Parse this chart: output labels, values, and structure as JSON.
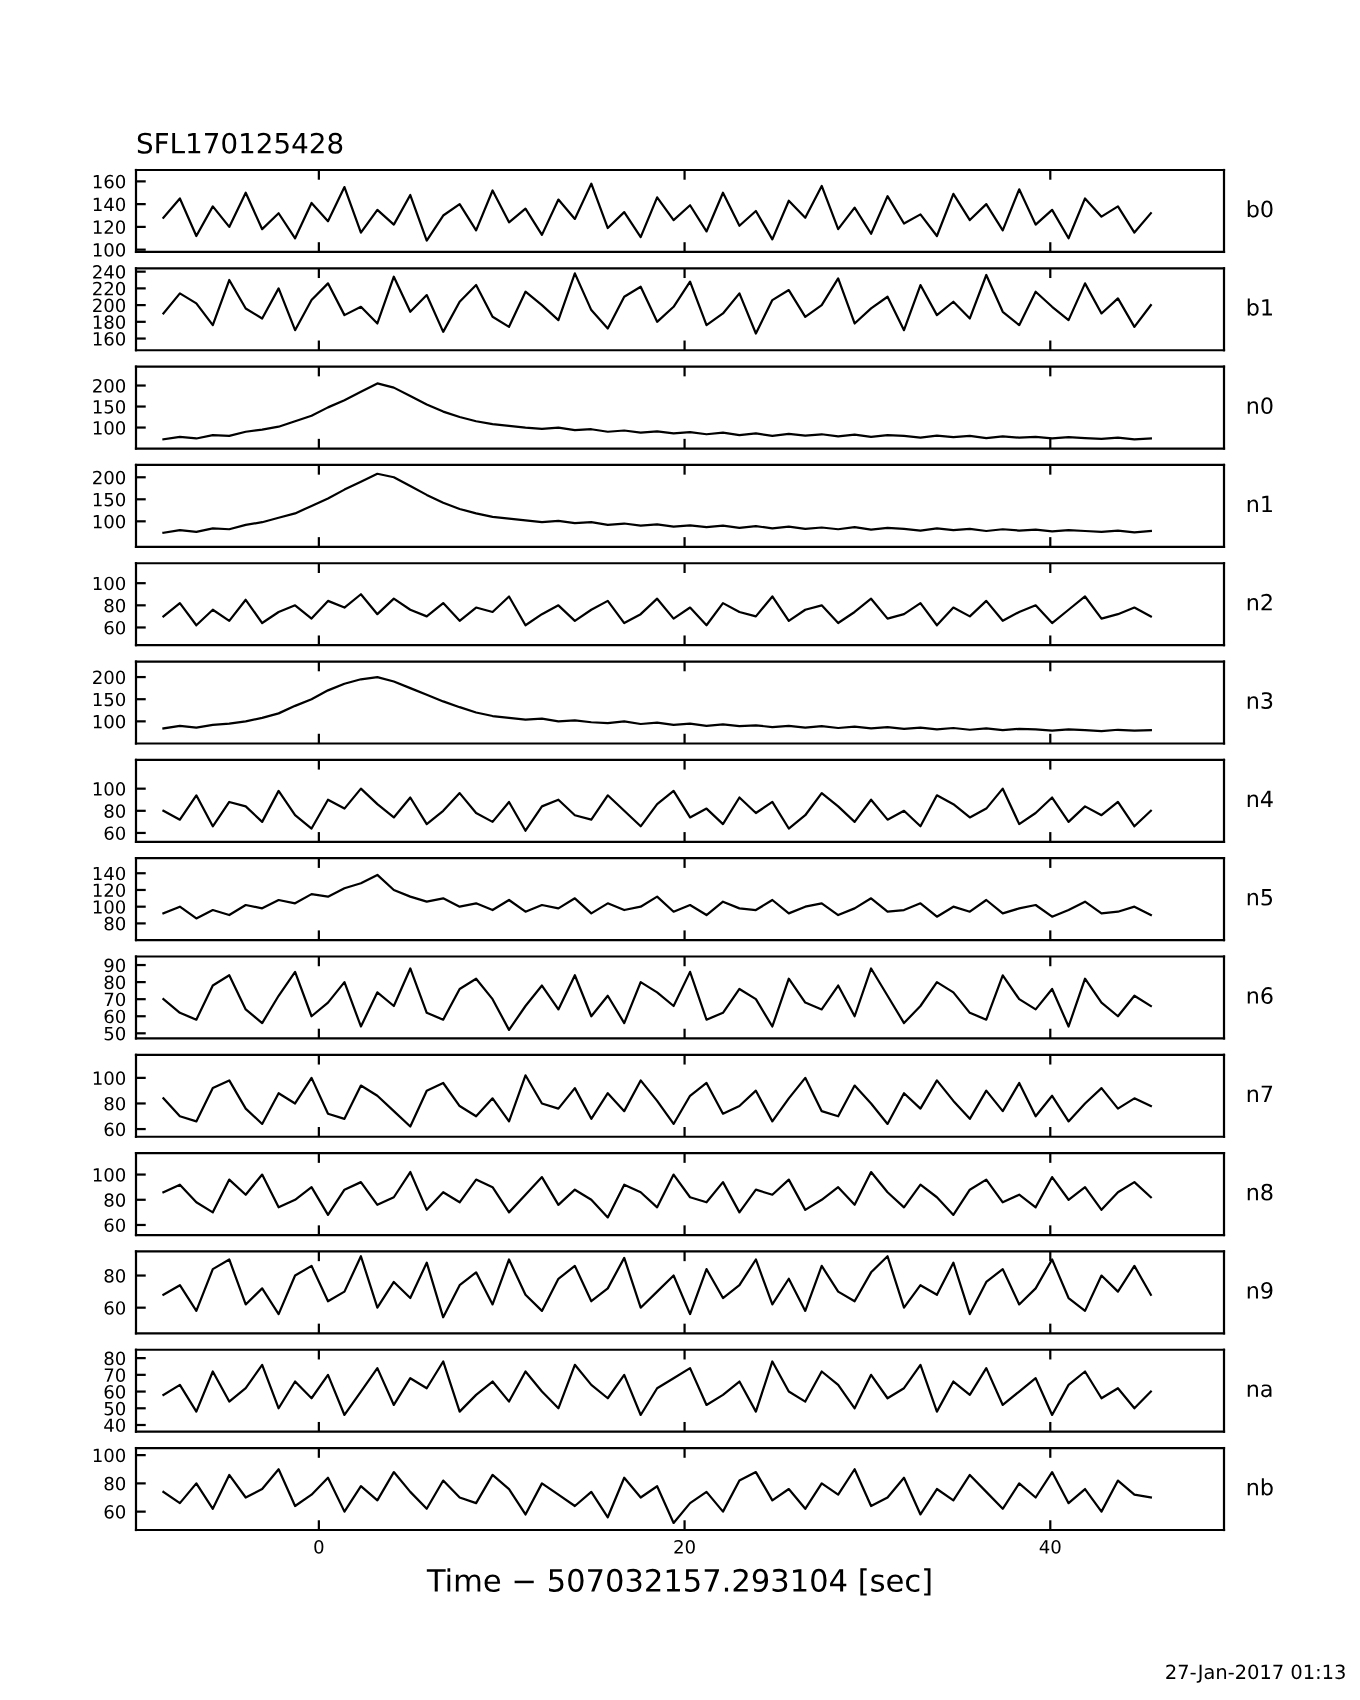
{
  "chart_data": [
    {
      "type": "line",
      "title": "SFL170125428",
      "annotations": [
        "b0"
      ],
      "tick_labels": "y",
      "xlim": [
        -10,
        49.5
      ],
      "xticks": [
        0,
        20,
        40
      ],
      "ylim": [
        98,
        170
      ],
      "yticks": [
        100,
        120,
        140,
        160
      ],
      "x": [
        -8.5,
        -7.6,
        -6.7,
        -5.8,
        -4.9,
        -4,
        -3.1,
        -2.2,
        -1.3,
        -0.4,
        0.5,
        1.4,
        2.3,
        3.2,
        4.1,
        5,
        5.9,
        6.8,
        7.7,
        8.6,
        9.5,
        10.4,
        11.3,
        12.2,
        13.1,
        14,
        14.9,
        15.8,
        16.7,
        17.6,
        18.5,
        19.4,
        20.3,
        21.2,
        22.1,
        23,
        23.9,
        24.8,
        25.7,
        26.6,
        27.5,
        28.4,
        29.3,
        30.2,
        31.1,
        32,
        32.9,
        33.8,
        34.7,
        35.6,
        36.5,
        37.4,
        38.3,
        39.2,
        40.1,
        41,
        41.9,
        42.8,
        43.7,
        44.6,
        45.5
      ],
      "series": [
        {
          "color": "#000000",
          "values": [
            128,
            145,
            112,
            138,
            120,
            150,
            118,
            132,
            110,
            141,
            125,
            155,
            115,
            135,
            122,
            148,
            108,
            130,
            140,
            117,
            152,
            124,
            136,
            113,
            144,
            127,
            158,
            119,
            133,
            111,
            146,
            126,
            139,
            116,
            150,
            121,
            134,
            109,
            143,
            128,
            156,
            118,
            137,
            114,
            147,
            123,
            131,
            112,
            149,
            126,
            140,
            117,
            153,
            122,
            135,
            110,
            145,
            129,
            138,
            115,
            132
          ]
        }
      ]
    },
    {
      "type": "line",
      "annotations": [
        "b1"
      ],
      "tick_labels": "y",
      "xlim": [
        -10,
        49.5
      ],
      "xticks": [
        0,
        20,
        40
      ],
      "ylim": [
        146,
        244
      ],
      "yticks": [
        160,
        180,
        200,
        220,
        240
      ],
      "x": [
        -8.5,
        -7.6,
        -6.7,
        -5.8,
        -4.9,
        -4,
        -3.1,
        -2.2,
        -1.3,
        -0.4,
        0.5,
        1.4,
        2.3,
        3.2,
        4.1,
        5,
        5.9,
        6.8,
        7.7,
        8.6,
        9.5,
        10.4,
        11.3,
        12.2,
        13.1,
        14,
        14.9,
        15.8,
        16.7,
        17.6,
        18.5,
        19.4,
        20.3,
        21.2,
        22.1,
        23,
        23.9,
        24.8,
        25.7,
        26.6,
        27.5,
        28.4,
        29.3,
        30.2,
        31.1,
        32,
        32.9,
        33.8,
        34.7,
        35.6,
        36.5,
        37.4,
        38.3,
        39.2,
        40.1,
        41,
        41.9,
        42.8,
        43.7,
        44.6,
        45.5
      ],
      "series": [
        {
          "color": "#000000",
          "values": [
            190,
            214,
            202,
            176,
            230,
            196,
            184,
            220,
            170,
            206,
            226,
            188,
            198,
            178,
            234,
            192,
            212,
            168,
            204,
            224,
            186,
            174,
            216,
            200,
            182,
            238,
            194,
            172,
            210,
            222,
            180,
            198,
            228,
            176,
            190,
            214,
            166,
            206,
            218,
            186,
            200,
            232,
            178,
            196,
            210,
            170,
            224,
            188,
            204,
            184,
            236,
            192,
            176,
            216,
            198,
            182,
            226,
            190,
            208,
            174,
            200
          ]
        }
      ]
    },
    {
      "type": "line",
      "annotations": [
        "n0"
      ],
      "tick_labels": "y",
      "xlim": [
        -10,
        49.5
      ],
      "xticks": [
        0,
        20,
        40
      ],
      "ylim": [
        50,
        245
      ],
      "yticks": [
        100,
        150,
        200
      ],
      "x": [
        -8.5,
        -7.6,
        -6.7,
        -5.8,
        -4.9,
        -4,
        -3.1,
        -2.2,
        -1.3,
        -0.4,
        0.5,
        1.4,
        2.3,
        3.2,
        4.1,
        5,
        5.9,
        6.8,
        7.7,
        8.6,
        9.5,
        10.4,
        11.3,
        12.2,
        13.1,
        14,
        14.9,
        15.8,
        16.7,
        17.6,
        18.5,
        19.4,
        20.3,
        21.2,
        22.1,
        23,
        23.9,
        24.8,
        25.7,
        26.6,
        27.5,
        28.4,
        29.3,
        30.2,
        31.1,
        32,
        32.9,
        33.8,
        34.7,
        35.6,
        36.5,
        37.4,
        38.3,
        39.2,
        40.1,
        41,
        41.9,
        42.8,
        43.7,
        44.6,
        45.5
      ],
      "series": [
        {
          "color": "#000000",
          "values": [
            72,
            78,
            74,
            82,
            80,
            90,
            95,
            102,
            115,
            128,
            148,
            165,
            185,
            205,
            195,
            175,
            155,
            138,
            125,
            115,
            108,
            104,
            100,
            97,
            100,
            94,
            96,
            90,
            93,
            88,
            91,
            86,
            89,
            84,
            88,
            82,
            86,
            80,
            85,
            81,
            84,
            79,
            83,
            78,
            82,
            80,
            76,
            81,
            77,
            80,
            75,
            79,
            76,
            78,
            74,
            77,
            75,
            73,
            76,
            72,
            74
          ]
        }
      ]
    },
    {
      "type": "line",
      "annotations": [
        "n1"
      ],
      "tick_labels": "y",
      "xlim": [
        -10,
        49.5
      ],
      "xticks": [
        0,
        20,
        40
      ],
      "ylim": [
        42,
        228
      ],
      "yticks": [
        100,
        150,
        200
      ],
      "x": [
        -8.5,
        -7.6,
        -6.7,
        -5.8,
        -4.9,
        -4,
        -3.1,
        -2.2,
        -1.3,
        -0.4,
        0.5,
        1.4,
        2.3,
        3.2,
        4.1,
        5,
        5.9,
        6.8,
        7.7,
        8.6,
        9.5,
        10.4,
        11.3,
        12.2,
        13.1,
        14,
        14.9,
        15.8,
        16.7,
        17.6,
        18.5,
        19.4,
        20.3,
        21.2,
        22.1,
        23,
        23.9,
        24.8,
        25.7,
        26.6,
        27.5,
        28.4,
        29.3,
        30.2,
        31.1,
        32,
        32.9,
        33.8,
        34.7,
        35.6,
        36.5,
        37.4,
        38.3,
        39.2,
        40.1,
        41,
        41.9,
        42.8,
        43.7,
        44.6,
        45.5
      ],
      "series": [
        {
          "color": "#000000",
          "values": [
            74,
            80,
            76,
            84,
            82,
            92,
            98,
            108,
            118,
            135,
            152,
            172,
            190,
            208,
            200,
            180,
            160,
            142,
            128,
            118,
            110,
            106,
            102,
            98,
            101,
            96,
            98,
            92,
            95,
            90,
            93,
            88,
            91,
            87,
            90,
            85,
            89,
            84,
            88,
            83,
            86,
            82,
            87,
            81,
            85,
            83,
            79,
            84,
            80,
            83,
            78,
            82,
            79,
            81,
            77,
            80,
            78,
            76,
            79,
            75,
            78
          ]
        }
      ]
    },
    {
      "type": "line",
      "annotations": [
        "n2"
      ],
      "tick_labels": "y",
      "xlim": [
        -10,
        49.5
      ],
      "xticks": [
        0,
        20,
        40
      ],
      "ylim": [
        44,
        118
      ],
      "yticks": [
        60,
        80,
        100
      ],
      "x": [
        -8.5,
        -7.6,
        -6.7,
        -5.8,
        -4.9,
        -4,
        -3.1,
        -2.2,
        -1.3,
        -0.4,
        0.5,
        1.4,
        2.3,
        3.2,
        4.1,
        5,
        5.9,
        6.8,
        7.7,
        8.6,
        9.5,
        10.4,
        11.3,
        12.2,
        13.1,
        14,
        14.9,
        15.8,
        16.7,
        17.6,
        18.5,
        19.4,
        20.3,
        21.2,
        22.1,
        23,
        23.9,
        24.8,
        25.7,
        26.6,
        27.5,
        28.4,
        29.3,
        30.2,
        31.1,
        32,
        32.9,
        33.8,
        34.7,
        35.6,
        36.5,
        37.4,
        38.3,
        39.2,
        40.1,
        41,
        41.9,
        42.8,
        43.7,
        44.6,
        45.5
      ],
      "series": [
        {
          "color": "#000000",
          "values": [
            70,
            82,
            62,
            76,
            66,
            85,
            64,
            74,
            80,
            68,
            84,
            78,
            90,
            72,
            86,
            76,
            70,
            82,
            66,
            78,
            74,
            88,
            62,
            72,
            80,
            66,
            76,
            84,
            64,
            72,
            86,
            68,
            78,
            62,
            82,
            74,
            70,
            88,
            66,
            76,
            80,
            64,
            74,
            86,
            68,
            72,
            82,
            62,
            78,
            70,
            84,
            66,
            74,
            80,
            64,
            76,
            88,
            68,
            72,
            78,
            70
          ]
        }
      ]
    },
    {
      "type": "line",
      "annotations": [
        "n3"
      ],
      "tick_labels": "y",
      "xlim": [
        -10,
        49.5
      ],
      "xticks": [
        0,
        20,
        40
      ],
      "ylim": [
        50,
        235
      ],
      "yticks": [
        100,
        150,
        200
      ],
      "x": [
        -8.5,
        -7.6,
        -6.7,
        -5.8,
        -4.9,
        -4,
        -3.1,
        -2.2,
        -1.3,
        -0.4,
        0.5,
        1.4,
        2.3,
        3.2,
        4.1,
        5,
        5.9,
        6.8,
        7.7,
        8.6,
        9.5,
        10.4,
        11.3,
        12.2,
        13.1,
        14,
        14.9,
        15.8,
        16.7,
        17.6,
        18.5,
        19.4,
        20.3,
        21.2,
        22.1,
        23,
        23.9,
        24.8,
        25.7,
        26.6,
        27.5,
        28.4,
        29.3,
        30.2,
        31.1,
        32,
        32.9,
        33.8,
        34.7,
        35.6,
        36.5,
        37.4,
        38.3,
        39.2,
        40.1,
        41,
        41.9,
        42.8,
        43.7,
        44.6,
        45.5
      ],
      "series": [
        {
          "color": "#000000",
          "values": [
            84,
            90,
            86,
            92,
            95,
            100,
            108,
            118,
            135,
            150,
            170,
            185,
            195,
            200,
            190,
            175,
            160,
            145,
            132,
            120,
            112,
            108,
            104,
            106,
            100,
            102,
            98,
            96,
            100,
            94,
            97,
            92,
            95,
            90,
            93,
            89,
            91,
            87,
            90,
            86,
            89,
            85,
            88,
            84,
            87,
            83,
            86,
            82,
            85,
            81,
            84,
            80,
            83,
            82,
            79,
            82,
            80,
            78,
            81,
            79,
            80
          ]
        }
      ]
    },
    {
      "type": "line",
      "annotations": [
        "n4"
      ],
      "tick_labels": "y",
      "xlim": [
        -10,
        49.5
      ],
      "xticks": [
        0,
        20,
        40
      ],
      "ylim": [
        52,
        126
      ],
      "yticks": [
        60,
        80,
        100
      ],
      "x": [
        -8.5,
        -7.6,
        -6.7,
        -5.8,
        -4.9,
        -4,
        -3.1,
        -2.2,
        -1.3,
        -0.4,
        0.5,
        1.4,
        2.3,
        3.2,
        4.1,
        5,
        5.9,
        6.8,
        7.7,
        8.6,
        9.5,
        10.4,
        11.3,
        12.2,
        13.1,
        14,
        14.9,
        15.8,
        16.7,
        17.6,
        18.5,
        19.4,
        20.3,
        21.2,
        22.1,
        23,
        23.9,
        24.8,
        25.7,
        26.6,
        27.5,
        28.4,
        29.3,
        30.2,
        31.1,
        32,
        32.9,
        33.8,
        34.7,
        35.6,
        36.5,
        37.4,
        38.3,
        39.2,
        40.1,
        41,
        41.9,
        42.8,
        43.7,
        44.6,
        45.5
      ],
      "series": [
        {
          "color": "#000000",
          "values": [
            80,
            72,
            94,
            66,
            88,
            84,
            70,
            98,
            76,
            64,
            90,
            82,
            100,
            86,
            74,
            92,
            68,
            80,
            96,
            78,
            70,
            88,
            62,
            84,
            90,
            76,
            72,
            94,
            80,
            66,
            86,
            98,
            74,
            82,
            68,
            92,
            78,
            88,
            64,
            76,
            96,
            84,
            70,
            90,
            72,
            80,
            66,
            94,
            86,
            74,
            82,
            100,
            68,
            78,
            92,
            70,
            84,
            76,
            88,
            66,
            80
          ]
        }
      ]
    },
    {
      "type": "line",
      "annotations": [
        "n5"
      ],
      "tick_labels": "y",
      "xlim": [
        -10,
        49.5
      ],
      "xticks": [
        0,
        20,
        40
      ],
      "ylim": [
        60,
        158
      ],
      "yticks": [
        80,
        100,
        120,
        140
      ],
      "x": [
        -8.5,
        -7.6,
        -6.7,
        -5.8,
        -4.9,
        -4,
        -3.1,
        -2.2,
        -1.3,
        -0.4,
        0.5,
        1.4,
        2.3,
        3.2,
        4.1,
        5,
        5.9,
        6.8,
        7.7,
        8.6,
        9.5,
        10.4,
        11.3,
        12.2,
        13.1,
        14,
        14.9,
        15.8,
        16.7,
        17.6,
        18.5,
        19.4,
        20.3,
        21.2,
        22.1,
        23,
        23.9,
        24.8,
        25.7,
        26.6,
        27.5,
        28.4,
        29.3,
        30.2,
        31.1,
        32,
        32.9,
        33.8,
        34.7,
        35.6,
        36.5,
        37.4,
        38.3,
        39.2,
        40.1,
        41,
        41.9,
        42.8,
        43.7,
        44.6,
        45.5
      ],
      "series": [
        {
          "color": "#000000",
          "values": [
            92,
            100,
            86,
            96,
            90,
            102,
            98,
            108,
            104,
            115,
            112,
            122,
            128,
            138,
            120,
            112,
            106,
            110,
            100,
            104,
            96,
            108,
            94,
            102,
            98,
            110,
            92,
            104,
            96,
            100,
            112,
            94,
            102,
            90,
            106,
            98,
            96,
            108,
            92,
            100,
            104,
            90,
            98,
            110,
            94,
            96,
            104,
            88,
            100,
            94,
            108,
            92,
            98,
            102,
            88,
            96,
            106,
            92,
            94,
            100,
            90
          ]
        }
      ]
    },
    {
      "type": "line",
      "annotations": [
        "n6"
      ],
      "tick_labels": "y",
      "xlim": [
        -10,
        49.5
      ],
      "xticks": [
        0,
        20,
        40
      ],
      "ylim": [
        47,
        95
      ],
      "yticks": [
        50,
        60,
        70,
        80,
        90
      ],
      "x": [
        -8.5,
        -7.6,
        -6.7,
        -5.8,
        -4.9,
        -4,
        -3.1,
        -2.2,
        -1.3,
        -0.4,
        0.5,
        1.4,
        2.3,
        3.2,
        4.1,
        5,
        5.9,
        6.8,
        7.7,
        8.6,
        9.5,
        10.4,
        11.3,
        12.2,
        13.1,
        14,
        14.9,
        15.8,
        16.7,
        17.6,
        18.5,
        19.4,
        20.3,
        21.2,
        22.1,
        23,
        23.9,
        24.8,
        25.7,
        26.6,
        27.5,
        28.4,
        29.3,
        30.2,
        31.1,
        32,
        32.9,
        33.8,
        34.7,
        35.6,
        36.5,
        37.4,
        38.3,
        39.2,
        40.1,
        41,
        41.9,
        42.8,
        43.7,
        44.6,
        45.5
      ],
      "series": [
        {
          "color": "#000000",
          "values": [
            70,
            62,
            58,
            78,
            84,
            64,
            56,
            72,
            86,
            60,
            68,
            80,
            54,
            74,
            66,
            88,
            62,
            58,
            76,
            82,
            70,
            52,
            66,
            78,
            64,
            84,
            60,
            72,
            56,
            80,
            74,
            66,
            86,
            58,
            62,
            76,
            70,
            54,
            82,
            68,
            64,
            78,
            60,
            88,
            72,
            56,
            66,
            80,
            74,
            62,
            58,
            84,
            70,
            64,
            76,
            54,
            82,
            68,
            60,
            72,
            66
          ]
        }
      ]
    },
    {
      "type": "line",
      "annotations": [
        "n7"
      ],
      "tick_labels": "y",
      "xlim": [
        -10,
        49.5
      ],
      "xticks": [
        0,
        20,
        40
      ],
      "ylim": [
        54,
        118
      ],
      "yticks": [
        60,
        80,
        100
      ],
      "x": [
        -8.5,
        -7.6,
        -6.7,
        -5.8,
        -4.9,
        -4,
        -3.1,
        -2.2,
        -1.3,
        -0.4,
        0.5,
        1.4,
        2.3,
        3.2,
        4.1,
        5,
        5.9,
        6.8,
        7.7,
        8.6,
        9.5,
        10.4,
        11.3,
        12.2,
        13.1,
        14,
        14.9,
        15.8,
        16.7,
        17.6,
        18.5,
        19.4,
        20.3,
        21.2,
        22.1,
        23,
        23.9,
        24.8,
        25.7,
        26.6,
        27.5,
        28.4,
        29.3,
        30.2,
        31.1,
        32,
        32.9,
        33.8,
        34.7,
        35.6,
        36.5,
        37.4,
        38.3,
        39.2,
        40.1,
        41,
        41.9,
        42.8,
        43.7,
        44.6,
        45.5
      ],
      "series": [
        {
          "color": "#000000",
          "values": [
            84,
            70,
            66,
            92,
            98,
            76,
            64,
            88,
            80,
            100,
            72,
            68,
            94,
            86,
            74,
            62,
            90,
            96,
            78,
            70,
            84,
            66,
            102,
            80,
            76,
            92,
            68,
            88,
            74,
            98,
            82,
            64,
            86,
            96,
            72,
            78,
            90,
            66,
            84,
            100,
            74,
            70,
            94,
            80,
            64,
            88,
            76,
            98,
            82,
            68,
            90,
            74,
            96,
            70,
            86,
            66,
            80,
            92,
            76,
            84,
            78
          ]
        }
      ]
    },
    {
      "type": "line",
      "annotations": [
        "n8"
      ],
      "tick_labels": "y",
      "xlim": [
        -10,
        49.5
      ],
      "xticks": [
        0,
        20,
        40
      ],
      "ylim": [
        52,
        117
      ],
      "yticks": [
        60,
        80,
        100
      ],
      "x": [
        -8.5,
        -7.6,
        -6.7,
        -5.8,
        -4.9,
        -4,
        -3.1,
        -2.2,
        -1.3,
        -0.4,
        0.5,
        1.4,
        2.3,
        3.2,
        4.1,
        5,
        5.9,
        6.8,
        7.7,
        8.6,
        9.5,
        10.4,
        11.3,
        12.2,
        13.1,
        14,
        14.9,
        15.8,
        16.7,
        17.6,
        18.5,
        19.4,
        20.3,
        21.2,
        22.1,
        23,
        23.9,
        24.8,
        25.7,
        26.6,
        27.5,
        28.4,
        29.3,
        30.2,
        31.1,
        32,
        32.9,
        33.8,
        34.7,
        35.6,
        36.5,
        37.4,
        38.3,
        39.2,
        40.1,
        41,
        41.9,
        42.8,
        43.7,
        44.6,
        45.5
      ],
      "series": [
        {
          "color": "#000000",
          "values": [
            86,
            92,
            78,
            70,
            96,
            84,
            100,
            74,
            80,
            90,
            68,
            88,
            94,
            76,
            82,
            102,
            72,
            86,
            78,
            96,
            90,
            70,
            84,
            98,
            76,
            88,
            80,
            66,
            92,
            86,
            74,
            100,
            82,
            78,
            94,
            70,
            88,
            84,
            96,
            72,
            80,
            90,
            76,
            102,
            86,
            74,
            92,
            82,
            68,
            88,
            96,
            78,
            84,
            74,
            98,
            80,
            90,
            72,
            86,
            94,
            82
          ]
        }
      ]
    },
    {
      "type": "line",
      "annotations": [
        "n9"
      ],
      "tick_labels": "y",
      "xlim": [
        -10,
        49.5
      ],
      "xticks": [
        0,
        20,
        40
      ],
      "ylim": [
        44,
        95
      ],
      "yticks": [
        60,
        80
      ],
      "x": [
        -8.5,
        -7.6,
        -6.7,
        -5.8,
        -4.9,
        -4,
        -3.1,
        -2.2,
        -1.3,
        -0.4,
        0.5,
        1.4,
        2.3,
        3.2,
        4.1,
        5,
        5.9,
        6.8,
        7.7,
        8.6,
        9.5,
        10.4,
        11.3,
        12.2,
        13.1,
        14,
        14.9,
        15.8,
        16.7,
        17.6,
        18.5,
        19.4,
        20.3,
        21.2,
        22.1,
        23,
        23.9,
        24.8,
        25.7,
        26.6,
        27.5,
        28.4,
        29.3,
        30.2,
        31.1,
        32,
        32.9,
        33.8,
        34.7,
        35.6,
        36.5,
        37.4,
        38.3,
        39.2,
        40.1,
        41,
        41.9,
        42.8,
        43.7,
        44.6,
        45.5
      ],
      "series": [
        {
          "color": "#000000",
          "values": [
            68,
            74,
            58,
            84,
            90,
            62,
            72,
            56,
            80,
            86,
            64,
            70,
            92,
            60,
            76,
            66,
            88,
            54,
            74,
            82,
            62,
            90,
            68,
            58,
            78,
            86,
            64,
            72,
            91,
            60,
            70,
            80,
            56,
            84,
            66,
            74,
            90,
            62,
            78,
            58,
            86,
            70,
            64,
            82,
            92,
            60,
            74,
            68,
            88,
            56,
            76,
            84,
            62,
            72,
            90,
            66,
            58,
            80,
            70,
            86,
            68
          ]
        }
      ]
    },
    {
      "type": "line",
      "annotations": [
        "na"
      ],
      "tick_labels": "y",
      "xlim": [
        -10,
        49.5
      ],
      "xticks": [
        0,
        20,
        40
      ],
      "ylim": [
        36,
        85
      ],
      "yticks": [
        40,
        50,
        60,
        70,
        80
      ],
      "x": [
        -8.5,
        -7.6,
        -6.7,
        -5.8,
        -4.9,
        -4,
        -3.1,
        -2.2,
        -1.3,
        -0.4,
        0.5,
        1.4,
        2.3,
        3.2,
        4.1,
        5,
        5.9,
        6.8,
        7.7,
        8.6,
        9.5,
        10.4,
        11.3,
        12.2,
        13.1,
        14,
        14.9,
        15.8,
        16.7,
        17.6,
        18.5,
        19.4,
        20.3,
        21.2,
        22.1,
        23,
        23.9,
        24.8,
        25.7,
        26.6,
        27.5,
        28.4,
        29.3,
        30.2,
        31.1,
        32,
        32.9,
        33.8,
        34.7,
        35.6,
        36.5,
        37.4,
        38.3,
        39.2,
        40.1,
        41,
        41.9,
        42.8,
        43.7,
        44.6,
        45.5
      ],
      "series": [
        {
          "color": "#000000",
          "values": [
            58,
            64,
            48,
            72,
            54,
            62,
            76,
            50,
            66,
            56,
            70,
            46,
            60,
            74,
            52,
            68,
            62,
            78,
            48,
            58,
            66,
            54,
            72,
            60,
            50,
            76,
            64,
            56,
            70,
            46,
            62,
            68,
            74,
            52,
            58,
            66,
            48,
            78,
            60,
            54,
            72,
            64,
            50,
            70,
            56,
            62,
            76,
            48,
            66,
            58,
            74,
            52,
            60,
            68,
            46,
            64,
            72,
            56,
            62,
            50,
            60
          ]
        }
      ]
    },
    {
      "type": "line",
      "annotations": [
        "nb",
        "27-Jan-2017 01:13"
      ],
      "xlabel": "Time − 507032157.293104 [sec]",
      "xlim": [
        -10,
        49.5
      ],
      "xticks": [
        0,
        20,
        40
      ],
      "ylim": [
        47,
        105
      ],
      "yticks": [
        60,
        80,
        100
      ],
      "x": [
        -8.5,
        -7.6,
        -6.7,
        -5.8,
        -4.9,
        -4,
        -3.1,
        -2.2,
        -1.3,
        -0.4,
        0.5,
        1.4,
        2.3,
        3.2,
        4.1,
        5,
        5.9,
        6.8,
        7.7,
        8.6,
        9.5,
        10.4,
        11.3,
        12.2,
        13.1,
        14,
        14.9,
        15.8,
        16.7,
        17.6,
        18.5,
        19.4,
        20.3,
        21.2,
        22.1,
        23,
        23.9,
        24.8,
        25.7,
        26.6,
        27.5,
        28.4,
        29.3,
        30.2,
        31.1,
        32,
        32.9,
        33.8,
        34.7,
        35.6,
        36.5,
        37.4,
        38.3,
        39.2,
        40.1,
        41,
        41.9,
        42.8,
        43.7,
        44.6,
        45.5
      ],
      "series": [
        {
          "color": "#000000",
          "values": [
            74,
            66,
            80,
            62,
            86,
            70,
            76,
            90,
            64,
            72,
            84,
            60,
            78,
            68,
            88,
            74,
            62,
            82,
            70,
            66,
            86,
            76,
            58,
            80,
            72,
            64,
            74,
            56,
            84,
            70,
            78,
            52,
            66,
            74,
            60,
            82,
            88,
            68,
            76,
            62,
            80,
            72,
            90,
            64,
            70,
            84,
            58,
            76,
            68,
            86,
            74,
            62,
            80,
            70,
            88,
            66,
            76,
            60,
            82,
            72,
            70
          ]
        }
      ]
    }
  ]
}
